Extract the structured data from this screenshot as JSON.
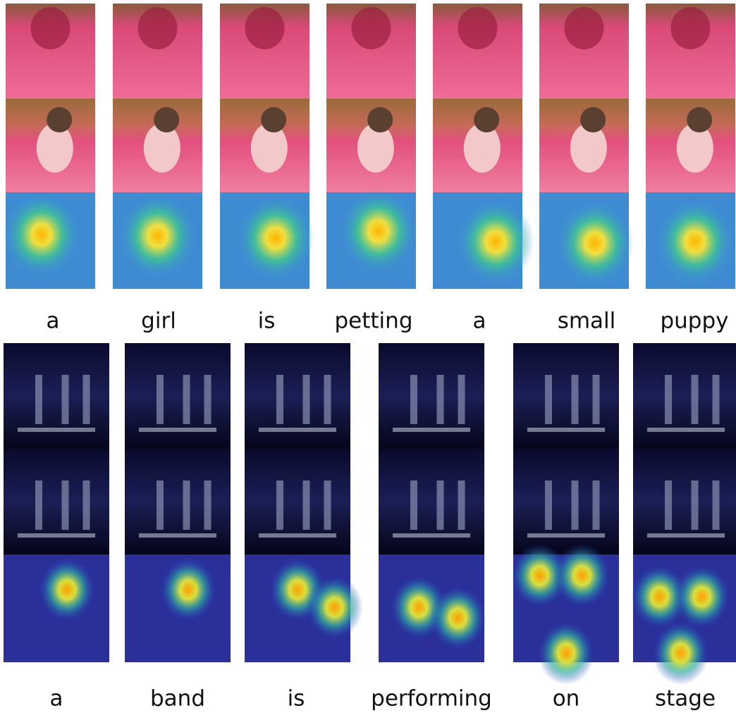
{
  "top": {
    "words": [
      "a",
      "girl",
      "is",
      "petting",
      "a",
      "small",
      "puppy"
    ]
  },
  "bottom": {
    "words": [
      "a",
      "band",
      "is",
      "performing",
      "on",
      "stage"
    ]
  }
}
